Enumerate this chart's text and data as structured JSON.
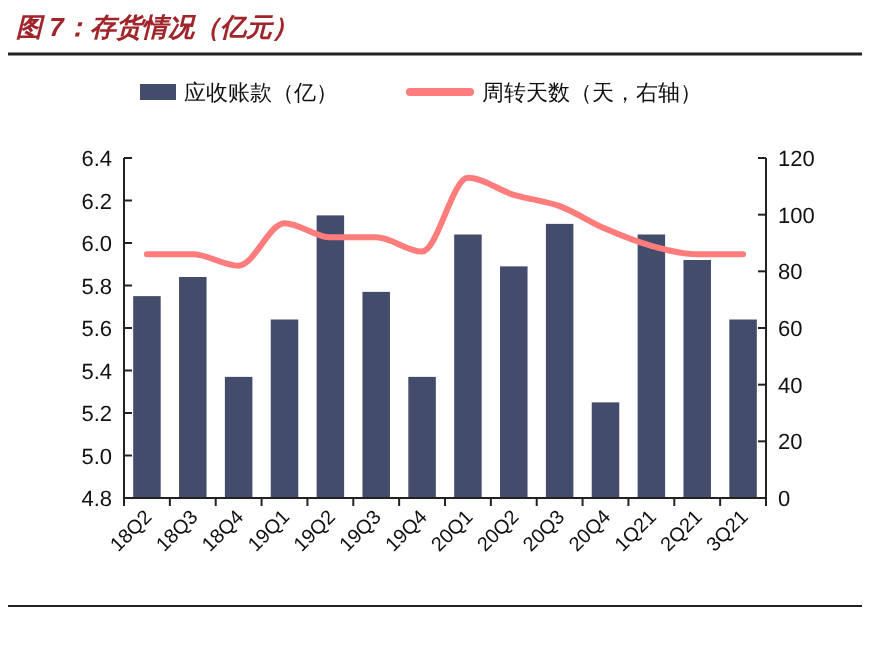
{
  "chart_data": {
    "type": "bar",
    "title": "图 7：存货情况（亿元）",
    "categories": [
      "18Q2",
      "18Q3",
      "18Q4",
      "19Q1",
      "19Q2",
      "19Q3",
      "19Q4",
      "20Q1",
      "20Q2",
      "20Q3",
      "20Q4",
      "1Q21",
      "2Q21",
      "3Q21"
    ],
    "series": [
      {
        "name": "应收账款（亿）",
        "color": "#444c6b",
        "values": [
          5.75,
          5.84,
          5.37,
          5.64,
          6.13,
          5.77,
          5.37,
          6.04,
          5.89,
          6.09,
          5.25,
          6.04,
          5.92,
          5.64
        ]
      },
      {
        "name": "周转天数（天，右轴）",
        "type": "line",
        "axis": "y2",
        "color": "#ff7c7c",
        "values": [
          86,
          86,
          82,
          97,
          92,
          92,
          87,
          113,
          107,
          103,
          95,
          89,
          86,
          86
        ]
      }
    ],
    "ylim": [
      4.8,
      6.4
    ],
    "yticks": [
      {
        "value": 4.8,
        "label": "4.8"
      },
      {
        "value": 5.0,
        "label": "5.0"
      },
      {
        "value": 5.2,
        "label": "5.2"
      },
      {
        "value": 5.4,
        "label": "5.4"
      },
      {
        "value": 5.6,
        "label": "5.6"
      },
      {
        "value": 5.8,
        "label": "5.8"
      },
      {
        "value": 6.0,
        "label": "6.0"
      },
      {
        "value": 6.2,
        "label": "6.2"
      },
      {
        "value": 6.4,
        "label": "6.4"
      }
    ],
    "y2lim": [
      0,
      120
    ],
    "y2ticks": [
      0,
      20,
      40,
      60,
      80,
      100,
      120
    ],
    "legend": "top",
    "grid": false
  }
}
